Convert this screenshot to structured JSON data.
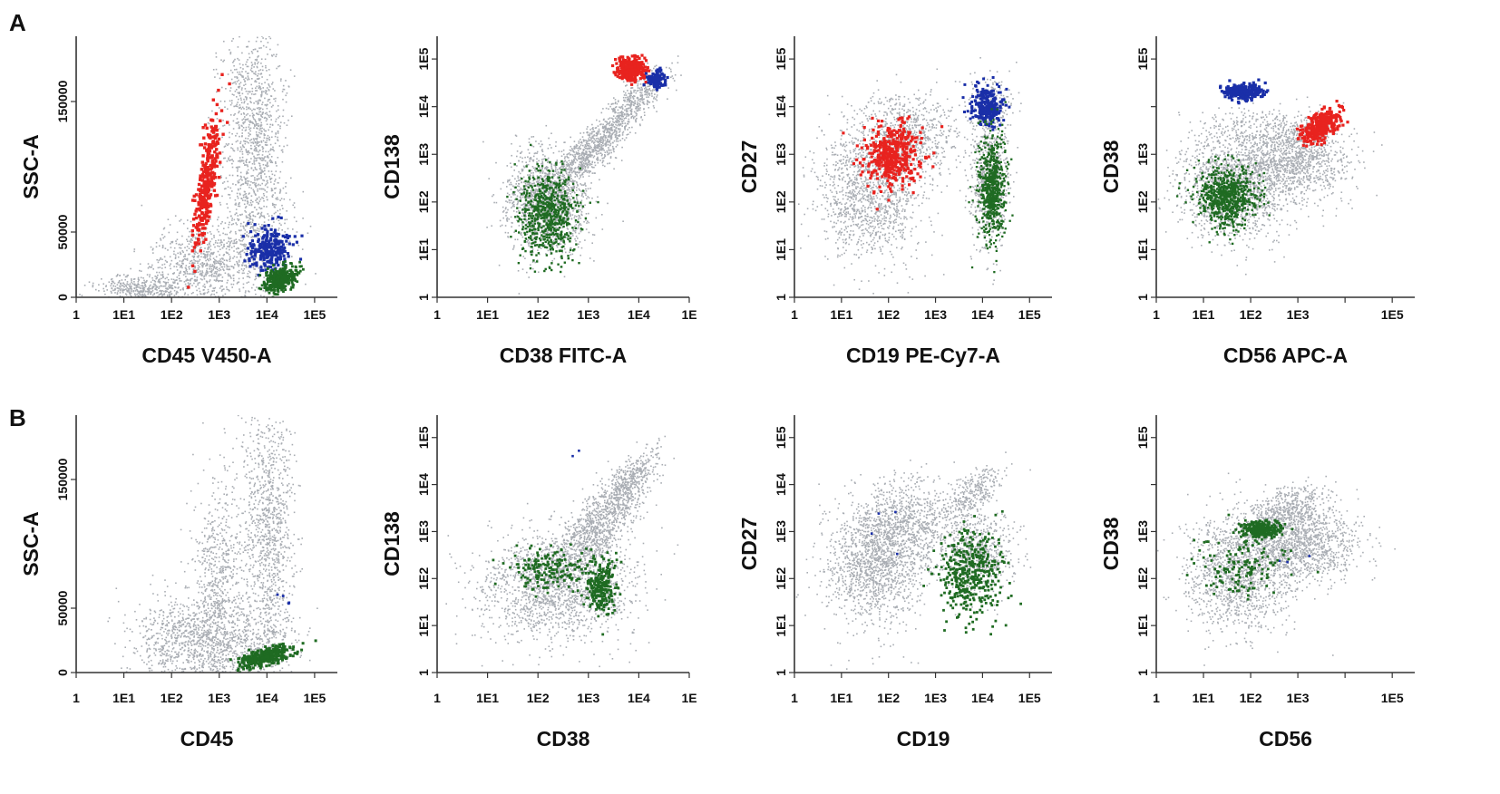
{
  "figure": {
    "row_labels": [
      "A",
      "B"
    ]
  },
  "chart_data": [
    {
      "type": "scatter",
      "row": "A",
      "ylabel": "SSC-A",
      "xlabel": "CD45 V450-A",
      "x_scale": "log",
      "y_scale": "linear",
      "xlim": [
        1,
        300000
      ],
      "ylim": [
        0,
        200000
      ],
      "x_ticks": [
        "1",
        "1E1",
        "1E2",
        "1E3",
        "1E4",
        "1E5"
      ],
      "y_ticks": [
        "0",
        "50000",
        "150000"
      ],
      "y_tick_values": [
        0,
        50000,
        150000
      ],
      "populations": [
        {
          "name": "background",
          "color": "#a9adb3",
          "size": 1.6,
          "n": 2600,
          "clusters": [
            {
              "x": 3.7,
              "y": 125000,
              "sx": 0.32,
              "sy": 50000,
              "w": 0.45
            },
            {
              "x": 2.7,
              "y": 25000,
              "sx": 0.55,
              "sy": 15000,
              "w": 0.3
            },
            {
              "x": 1.4,
              "y": 7000,
              "sx": 0.45,
              "sy": 5000,
              "w": 0.15
            },
            {
              "x": 3.9,
              "y": 45000,
              "sx": 0.4,
              "sy": 25000,
              "w": 0.1
            }
          ]
        },
        {
          "name": "red-cluster",
          "color": "#e8231f",
          "size": 3.4,
          "n": 320,
          "clusters": [
            {
              "x": 2.75,
              "y": 90000,
              "sx": 0.13,
              "sy": 26000,
              "w": 1,
              "corr": 0.75
            }
          ]
        },
        {
          "name": "blue-cluster",
          "color": "#1a2fa8",
          "size": 3.2,
          "n": 240,
          "clusters": [
            {
              "x": 4.05,
              "y": 36000,
              "sx": 0.22,
              "sy": 8000,
              "w": 1
            }
          ]
        },
        {
          "name": "green-cluster",
          "color": "#1f6b22",
          "size": 2.8,
          "n": 360,
          "clusters": [
            {
              "x": 4.3,
              "y": 14000,
              "sx": 0.16,
              "sy": 5000,
              "w": 1,
              "corr": 0.4
            }
          ]
        }
      ]
    },
    {
      "type": "scatter",
      "row": "A",
      "ylabel": "CD138",
      "xlabel": "CD38 FITC-A",
      "x_scale": "log",
      "y_scale": "log",
      "xlim": [
        1,
        100000
      ],
      "ylim": [
        1,
        300000
      ],
      "x_ticks": [
        "1",
        "1E1",
        "1E2",
        "1E3",
        "1E4",
        "1E"
      ],
      "y_ticks": [
        "1",
        "1E1",
        "1E2",
        "1E3",
        "1E4",
        "1E5"
      ],
      "populations": [
        {
          "name": "background",
          "color": "#a9adb3",
          "size": 1.6,
          "n": 2600,
          "clusters": [
            {
              "x": 2.2,
              "y": 2.0,
              "sx": 0.42,
              "sy": 0.55,
              "w": 0.55
            },
            {
              "x": 3.1,
              "y": 3.1,
              "sx": 0.45,
              "sy": 0.45,
              "w": 0.3,
              "corr": 0.85
            },
            {
              "x": 3.9,
              "y": 4.1,
              "sx": 0.35,
              "sy": 0.35,
              "w": 0.15,
              "corr": 0.8
            }
          ]
        },
        {
          "name": "red-cluster",
          "color": "#e8231f",
          "size": 3.2,
          "n": 300,
          "clusters": [
            {
              "x": 3.85,
              "y": 4.8,
              "sx": 0.15,
              "sy": 0.13,
              "w": 1
            }
          ]
        },
        {
          "name": "blue-cluster",
          "color": "#1a2fa8",
          "size": 3.2,
          "n": 110,
          "clusters": [
            {
              "x": 4.35,
              "y": 4.55,
              "sx": 0.09,
              "sy": 0.1,
              "w": 1
            }
          ]
        },
        {
          "name": "green-cluster",
          "color": "#1f6b22",
          "size": 2.4,
          "n": 650,
          "clusters": [
            {
              "x": 2.2,
              "y": 1.75,
              "sx": 0.3,
              "sy": 0.48,
              "w": 1
            }
          ]
        }
      ]
    },
    {
      "type": "scatter",
      "row": "A",
      "ylabel": "CD27",
      "xlabel": "CD19 PE-Cy7-A",
      "x_scale": "log",
      "y_scale": "log",
      "xlim": [
        1,
        300000
      ],
      "ylim": [
        1,
        300000
      ],
      "x_ticks": [
        "1",
        "1E1",
        "1E2",
        "1E3",
        "1E4",
        "1E5"
      ],
      "y_ticks": [
        "1",
        "1E1",
        "1E2",
        "1E3",
        "1E4",
        "1E5"
      ],
      "populations": [
        {
          "name": "background",
          "color": "#a9adb3",
          "size": 1.6,
          "n": 2800,
          "clusters": [
            {
              "x": 1.6,
              "y": 2.2,
              "sx": 0.55,
              "sy": 0.7,
              "w": 0.45
            },
            {
              "x": 2.4,
              "y": 3.4,
              "sx": 0.55,
              "sy": 0.45,
              "w": 0.25
            },
            {
              "x": 4.15,
              "y": 2.5,
              "sx": 0.2,
              "sy": 0.7,
              "w": 0.25
            },
            {
              "x": 4.2,
              "y": 4.1,
              "sx": 0.25,
              "sy": 0.3,
              "w": 0.05
            }
          ]
        },
        {
          "name": "red-cluster",
          "color": "#e8231f",
          "size": 3.2,
          "n": 420,
          "clusters": [
            {
              "x": 2.1,
              "y": 3.0,
              "sx": 0.3,
              "sy": 0.32,
              "w": 1
            }
          ]
        },
        {
          "name": "blue-cluster",
          "color": "#1a2fa8",
          "size": 3.0,
          "n": 260,
          "clusters": [
            {
              "x": 4.1,
              "y": 4.0,
              "sx": 0.18,
              "sy": 0.2,
              "w": 1
            }
          ]
        },
        {
          "name": "green-cluster",
          "color": "#1f6b22",
          "size": 2.3,
          "n": 650,
          "clusters": [
            {
              "x": 4.2,
              "y": 2.3,
              "sx": 0.14,
              "sy": 0.55,
              "w": 1
            }
          ]
        }
      ]
    },
    {
      "type": "scatter",
      "row": "A",
      "ylabel": "CD38",
      "xlabel": "CD56 APC-A",
      "x_scale": "log",
      "y_scale": "log",
      "xlim": [
        1,
        300000
      ],
      "ylim": [
        1,
        300000
      ],
      "x_ticks": [
        "1",
        "1E1",
        "1E2",
        "1E3",
        "",
        "1E5"
      ],
      "y_ticks": [
        "1",
        "1E1",
        "1E2",
        "1E3",
        "",
        "1E5"
      ],
      "populations": [
        {
          "name": "background",
          "color": "#a9adb3",
          "size": 1.6,
          "n": 2800,
          "clusters": [
            {
              "x": 1.7,
              "y": 2.3,
              "sx": 0.6,
              "sy": 0.55,
              "w": 0.55
            },
            {
              "x": 3.0,
              "y": 2.9,
              "sx": 0.55,
              "sy": 0.4,
              "w": 0.35
            },
            {
              "x": 2.3,
              "y": 3.5,
              "sx": 0.7,
              "sy": 0.25,
              "w": 0.1
            }
          ]
        },
        {
          "name": "red-cluster",
          "color": "#e8231f",
          "size": 3.2,
          "n": 340,
          "clusters": [
            {
              "x": 3.5,
              "y": 3.6,
              "sx": 0.2,
              "sy": 0.17,
              "w": 1,
              "corr": 0.5
            }
          ]
        },
        {
          "name": "blue-cluster",
          "color": "#1a2fa8",
          "size": 3.2,
          "n": 230,
          "clusters": [
            {
              "x": 1.85,
              "y": 4.3,
              "sx": 0.22,
              "sy": 0.08,
              "w": 1
            }
          ]
        },
        {
          "name": "green-cluster",
          "color": "#1f6b22",
          "size": 2.4,
          "n": 700,
          "clusters": [
            {
              "x": 1.5,
              "y": 2.1,
              "sx": 0.3,
              "sy": 0.3,
              "w": 1
            }
          ]
        }
      ]
    },
    {
      "type": "scatter",
      "row": "B",
      "ylabel": "SSC-A",
      "xlabel": "CD45",
      "x_scale": "log",
      "y_scale": "linear",
      "xlim": [
        1,
        300000
      ],
      "ylim": [
        0,
        200000
      ],
      "x_ticks": [
        "1",
        "1E1",
        "1E2",
        "1E3",
        "1E4",
        "1E5"
      ],
      "y_ticks": [
        "0",
        "50000",
        "150000"
      ],
      "y_tick_values": [
        0,
        50000,
        150000
      ],
      "populations": [
        {
          "name": "background",
          "color": "#a9adb3",
          "size": 1.6,
          "n": 3000,
          "clusters": [
            {
              "x": 4.05,
              "y": 110000,
              "sx": 0.28,
              "sy": 55000,
              "w": 0.35
            },
            {
              "x": 3.0,
              "y": 75000,
              "sx": 0.3,
              "sy": 40000,
              "w": 0.2
            },
            {
              "x": 2.4,
              "y": 25000,
              "sx": 0.6,
              "sy": 18000,
              "w": 0.3
            },
            {
              "x": 3.6,
              "y": 20000,
              "sx": 0.5,
              "sy": 15000,
              "w": 0.15
            }
          ]
        },
        {
          "name": "blue-events",
          "color": "#1a2fa8",
          "size": 2.8,
          "n": 4,
          "clusters": [
            {
              "x": 4.3,
              "y": 55000,
              "sx": 0.08,
              "sy": 3000,
              "w": 1
            }
          ]
        },
        {
          "name": "green-cluster",
          "color": "#1f6b22",
          "size": 3.0,
          "n": 340,
          "clusters": [
            {
              "x": 3.95,
              "y": 12000,
              "sx": 0.28,
              "sy": 4000,
              "w": 1,
              "corr": 0.6
            }
          ]
        }
      ]
    },
    {
      "type": "scatter",
      "row": "B",
      "ylabel": "CD138",
      "xlabel": "CD38",
      "x_scale": "log",
      "y_scale": "log",
      "xlim": [
        1,
        100000
      ],
      "ylim": [
        1,
        300000
      ],
      "x_ticks": [
        "1",
        "1E1",
        "1E2",
        "1E3",
        "1E4",
        "1E"
      ],
      "y_ticks": [
        "1",
        "1E1",
        "1E2",
        "1E3",
        "1E4",
        "1E5"
      ],
      "populations": [
        {
          "name": "background",
          "color": "#a9adb3",
          "size": 1.6,
          "n": 3000,
          "clusters": [
            {
              "x": 2.4,
              "y": 1.8,
              "sx": 0.75,
              "sy": 0.55,
              "w": 0.55
            },
            {
              "x": 3.1,
              "y": 3.0,
              "sx": 0.45,
              "sy": 0.55,
              "w": 0.3,
              "corr": 0.7
            },
            {
              "x": 3.8,
              "y": 4.0,
              "sx": 0.3,
              "sy": 0.35,
              "w": 0.15,
              "corr": 0.7
            }
          ]
        },
        {
          "name": "blue-events",
          "color": "#1a2fa8",
          "size": 2.6,
          "n": 2,
          "clusters": [
            {
              "x": 2.75,
              "y": 4.65,
              "sx": 0.04,
              "sy": 0.08,
              "w": 1
            }
          ]
        },
        {
          "name": "green-cluster",
          "color": "#1f6b22",
          "size": 2.8,
          "n": 420,
          "clusters": [
            {
              "x": 3.25,
              "y": 1.85,
              "sx": 0.15,
              "sy": 0.3,
              "w": 0.6
            },
            {
              "x": 2.2,
              "y": 2.2,
              "sx": 0.4,
              "sy": 0.22,
              "w": 0.4
            }
          ]
        }
      ]
    },
    {
      "type": "scatter",
      "row": "B",
      "ylabel": "CD27",
      "xlabel": "CD19",
      "x_scale": "log",
      "y_scale": "log",
      "xlim": [
        1,
        300000
      ],
      "ylim": [
        1,
        300000
      ],
      "x_ticks": [
        "1",
        "1E1",
        "1E2",
        "1E3",
        "1E4",
        "1E5"
      ],
      "y_ticks": [
        "1",
        "1E1",
        "1E2",
        "1E3",
        "1E4",
        "1E5"
      ],
      "populations": [
        {
          "name": "background",
          "color": "#a9adb3",
          "size": 1.6,
          "n": 3000,
          "clusters": [
            {
              "x": 1.7,
              "y": 2.3,
              "sx": 0.5,
              "sy": 0.65,
              "w": 0.45
            },
            {
              "x": 2.5,
              "y": 3.2,
              "sx": 0.55,
              "sy": 0.45,
              "w": 0.25
            },
            {
              "x": 3.9,
              "y": 2.5,
              "sx": 0.4,
              "sy": 0.4,
              "w": 0.2
            },
            {
              "x": 3.8,
              "y": 3.8,
              "sx": 0.3,
              "sy": 0.3,
              "w": 0.1,
              "corr": 0.6
            }
          ]
        },
        {
          "name": "blue-events",
          "color": "#1a2fa8",
          "size": 2.6,
          "n": 4,
          "clusters": [
            {
              "x": 1.8,
              "y": 2.6,
              "sx": 0.4,
              "sy": 0.5,
              "w": 1
            }
          ]
        },
        {
          "name": "green-cluster",
          "color": "#1f6b22",
          "size": 2.8,
          "n": 420,
          "clusters": [
            {
              "x": 3.75,
              "y": 2.1,
              "sx": 0.35,
              "sy": 0.45,
              "w": 1
            }
          ]
        }
      ]
    },
    {
      "type": "scatter",
      "row": "B",
      "ylabel": "CD38",
      "xlabel": "CD56",
      "x_scale": "log",
      "y_scale": "log",
      "xlim": [
        1,
        300000
      ],
      "ylim": [
        1,
        300000
      ],
      "x_ticks": [
        "1",
        "1E1",
        "1E2",
        "1E3",
        "",
        "1E5"
      ],
      "y_ticks": [
        "1",
        "1E1",
        "1E2",
        "1E3",
        "",
        "1E5"
      ],
      "populations": [
        {
          "name": "background",
          "color": "#a9adb3",
          "size": 1.6,
          "n": 3000,
          "clusters": [
            {
              "x": 1.8,
              "y": 2.1,
              "sx": 0.55,
              "sy": 0.6,
              "w": 0.45
            },
            {
              "x": 3.1,
              "y": 2.7,
              "sx": 0.6,
              "sy": 0.35,
              "w": 0.35
            },
            {
              "x": 2.7,
              "y": 3.4,
              "sx": 0.45,
              "sy": 0.3,
              "w": 0.2,
              "corr": 0.5
            }
          ]
        },
        {
          "name": "blue-events",
          "color": "#1a2fa8",
          "size": 2.6,
          "n": 3,
          "clusters": [
            {
              "x": 2.8,
              "y": 2.5,
              "sx": 0.3,
              "sy": 0.1,
              "w": 1
            }
          ]
        },
        {
          "name": "green-cluster",
          "color": "#1f6b22",
          "size": 2.8,
          "n": 420,
          "clusters": [
            {
              "x": 2.25,
              "y": 3.05,
              "sx": 0.2,
              "sy": 0.08,
              "w": 0.65
            },
            {
              "x": 1.8,
              "y": 2.3,
              "sx": 0.45,
              "sy": 0.35,
              "w": 0.35
            }
          ]
        }
      ]
    }
  ]
}
